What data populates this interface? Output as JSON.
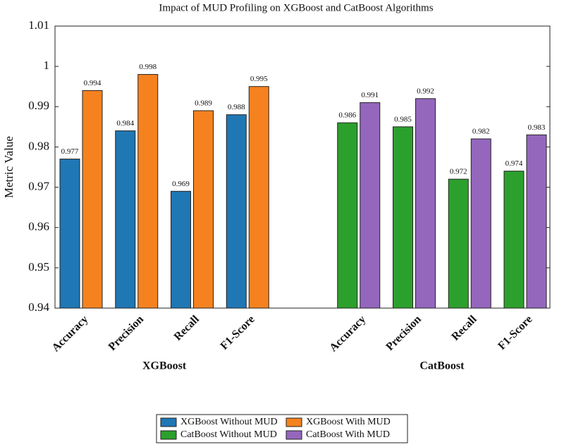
{
  "chart_data": {
    "type": "bar",
    "title": "Impact of MUD Profiling on XGBoost and CatBoost Algorithms",
    "y_label": "Metric Value",
    "groups": [
      {
        "label": "XGBoost",
        "categories": [
          "Accuracy",
          "Precision",
          "Recall",
          "F1-Score"
        ]
      },
      {
        "label": "CatBoost",
        "categories": [
          "Accuracy",
          "Precision",
          "Recall",
          "F1-Score"
        ]
      }
    ],
    "series": [
      {
        "name": "XGBoost Without MUD",
        "color": "#1f77b4",
        "values": [
          0.977,
          0.984,
          0.969,
          0.988,
          null,
          null,
          null,
          null
        ]
      },
      {
        "name": "XGBoost With MUD",
        "color": "#f5821f",
        "values": [
          0.994,
          0.998,
          0.989,
          0.995,
          null,
          null,
          null,
          null
        ]
      },
      {
        "name": "CatBoost Without MUD",
        "color": "#2ca02c",
        "values": [
          null,
          null,
          null,
          null,
          0.986,
          0.985,
          0.972,
          0.974
        ]
      },
      {
        "name": "CatBoost With MUD",
        "color": "#9467bd",
        "values": [
          null,
          null,
          null,
          null,
          0.991,
          0.992,
          0.982,
          0.983
        ]
      }
    ],
    "ylim": [
      0.94,
      1.01
    ],
    "yticks": [
      0.94,
      0.95,
      0.96,
      0.97,
      0.98,
      0.99,
      1,
      1.01
    ],
    "legend": "bottom"
  }
}
